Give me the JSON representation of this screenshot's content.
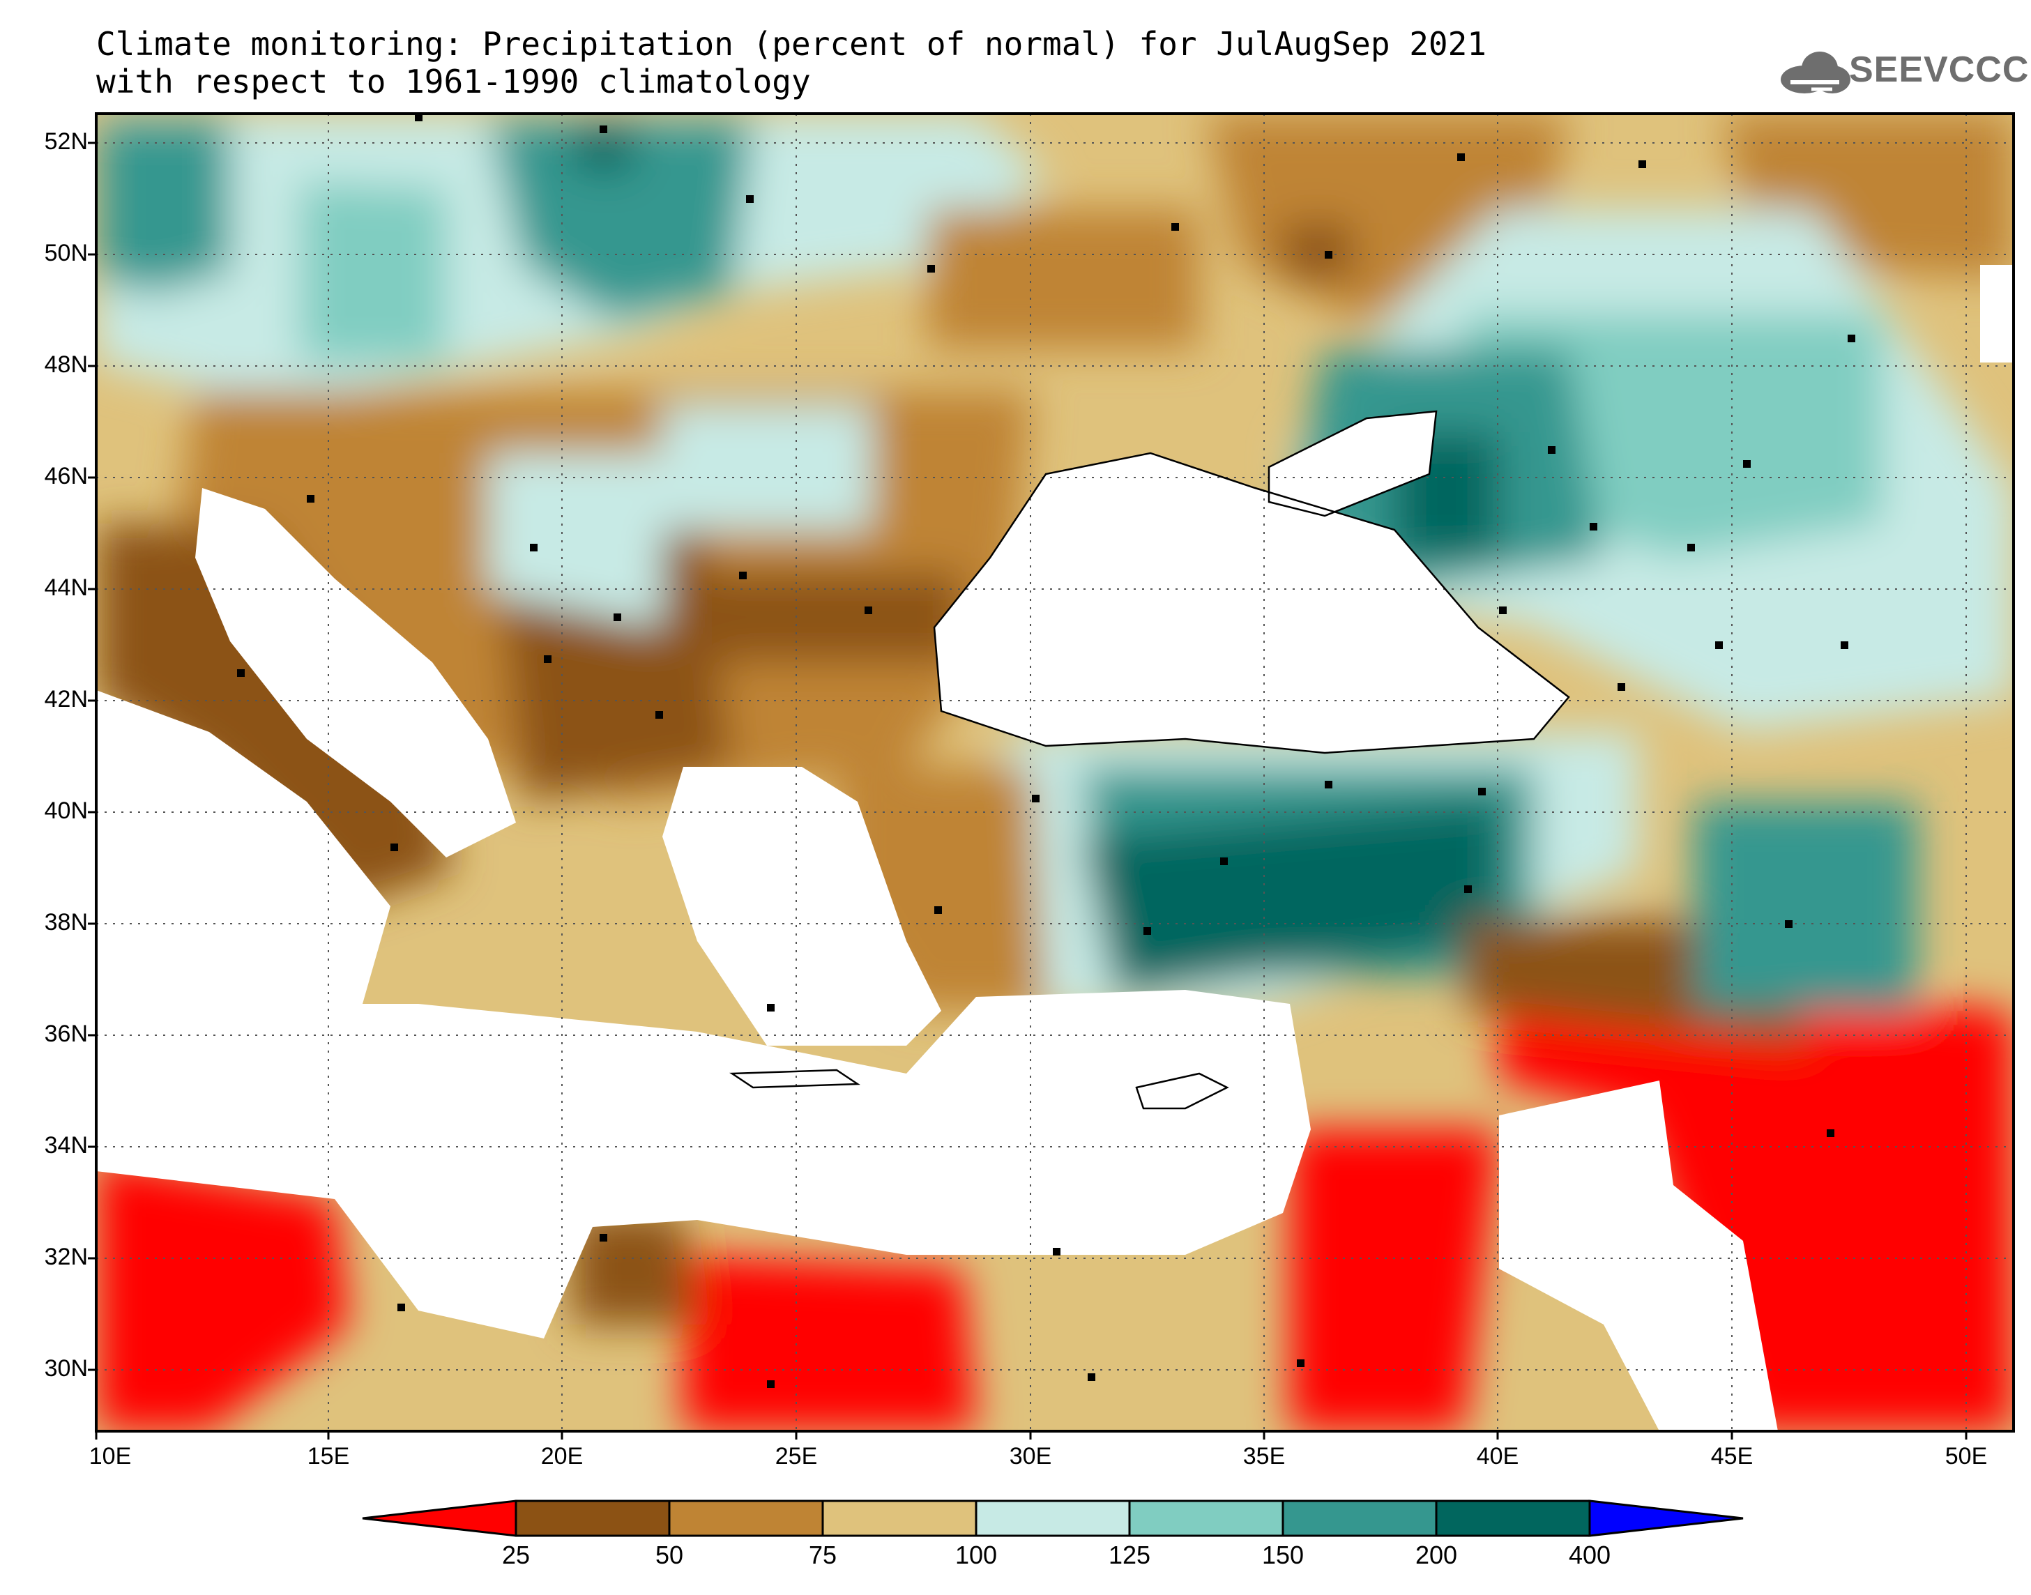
{
  "title": {
    "line1": "Climate monitoring: Precipitation (percent of normal) for JulAugSep 2021",
    "line2": "with respect to 1961-1990 climatology"
  },
  "logo": {
    "text": "SEEVCCC",
    "icon": "cloud-icon"
  },
  "axes": {
    "lat_labels": [
      "52N",
      "50N",
      "48N",
      "46N",
      "44N",
      "42N",
      "40N",
      "38N",
      "36N",
      "34N",
      "32N",
      "30N"
    ],
    "lon_labels": [
      "10E",
      "15E",
      "20E",
      "25E",
      "30E",
      "35E",
      "40E",
      "45E",
      "50E"
    ]
  },
  "colorbar": {
    "labels": [
      "25",
      "50",
      "75",
      "100",
      "125",
      "150",
      "200",
      "400"
    ],
    "colors": [
      "#ff0000",
      "#8c5214",
      "#bf8434",
      "#dfc27c",
      "#c7eae5",
      "#80cdc1",
      "#35978f",
      "#01665e",
      "#0000ff"
    ]
  },
  "chart_data": {
    "type": "heatmap",
    "variable": "Precipitation (percent of normal)",
    "period": "JulAugSep 2021",
    "reference": "1961-1990 climatology",
    "lon_range": [
      10,
      51
    ],
    "lat_range": [
      29,
      52.5
    ],
    "levels": [
      25,
      50,
      75,
      100,
      125,
      150,
      200,
      400
    ],
    "colors": [
      "#ff0000",
      "#8c5214",
      "#bf8434",
      "#dfc27c",
      "#c7eae5",
      "#80cdc1",
      "#35978f",
      "#01665e",
      "#0000ff"
    ],
    "grid": true
  }
}
